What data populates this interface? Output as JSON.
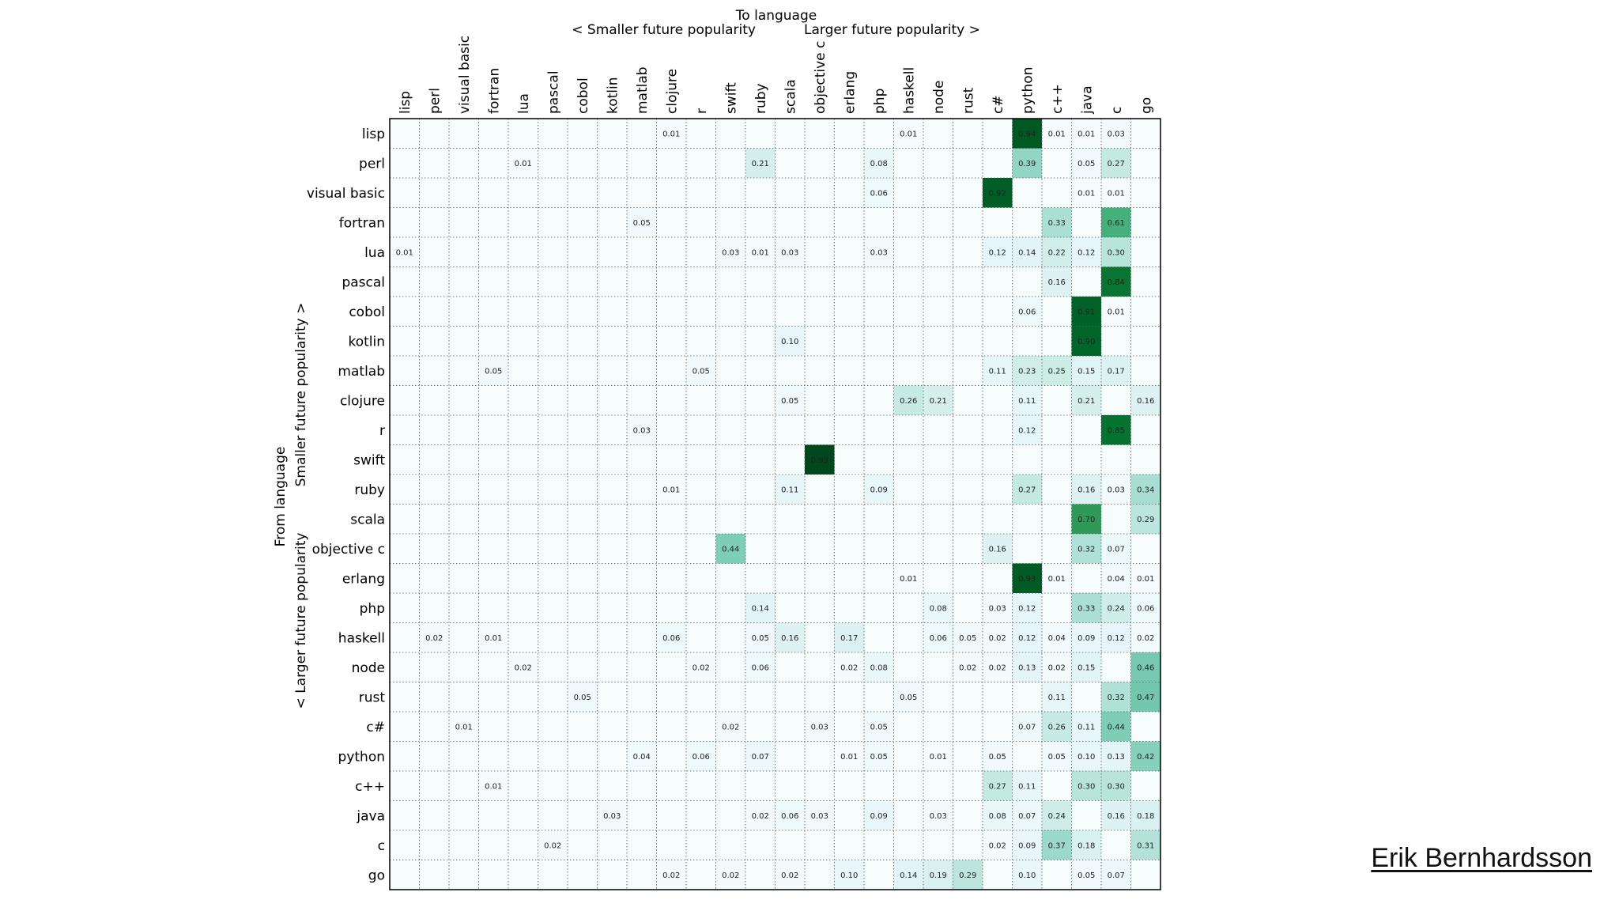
{
  "credit": "Erik Bernhardsson",
  "chart_data": {
    "type": "heatmap",
    "title": "",
    "xlabel": "To language",
    "xlabel_left": "< Smaller future popularity",
    "xlabel_right": "Larger future popularity >",
    "ylabel": "From language",
    "ylabel_top": "Smaller future popularity >",
    "ylabel_bottom": "< Larger future popularity",
    "colormap": "BuGn",
    "grid": true,
    "color_range": [
      0,
      1
    ],
    "languages": [
      "lisp",
      "perl",
      "visual basic",
      "fortran",
      "lua",
      "pascal",
      "cobol",
      "kotlin",
      "matlab",
      "clojure",
      "r",
      "swift",
      "ruby",
      "scala",
      "objective c",
      "erlang",
      "php",
      "haskell",
      "node",
      "rust",
      "c#",
      "python",
      "c++",
      "java",
      "c",
      "go"
    ],
    "cells": [
      {
        "from": "lisp",
        "to": "clojure",
        "value": "0.01"
      },
      {
        "from": "lisp",
        "to": "haskell",
        "value": "0.01"
      },
      {
        "from": "lisp",
        "to": "python",
        "value": "0.94"
      },
      {
        "from": "lisp",
        "to": "c++",
        "value": "0.01"
      },
      {
        "from": "lisp",
        "to": "java",
        "value": "0.01"
      },
      {
        "from": "lisp",
        "to": "c",
        "value": "0.03"
      },
      {
        "from": "perl",
        "to": "lua",
        "value": "0.01"
      },
      {
        "from": "perl",
        "to": "ruby",
        "value": "0.21"
      },
      {
        "from": "perl",
        "to": "php",
        "value": "0.08"
      },
      {
        "from": "perl",
        "to": "python",
        "value": "0.39"
      },
      {
        "from": "perl",
        "to": "java",
        "value": "0.05"
      },
      {
        "from": "perl",
        "to": "c",
        "value": "0.27"
      },
      {
        "from": "visual basic",
        "to": "php",
        "value": "0.06"
      },
      {
        "from": "visual basic",
        "to": "c#",
        "value": "0.92"
      },
      {
        "from": "visual basic",
        "to": "java",
        "value": "0.01"
      },
      {
        "from": "visual basic",
        "to": "c",
        "value": "0.01"
      },
      {
        "from": "fortran",
        "to": "matlab",
        "value": "0.05"
      },
      {
        "from": "fortran",
        "to": "c++",
        "value": "0.33"
      },
      {
        "from": "fortran",
        "to": "c",
        "value": "0.61"
      },
      {
        "from": "lua",
        "to": "lisp",
        "value": "0.01"
      },
      {
        "from": "lua",
        "to": "swift",
        "value": "0.03"
      },
      {
        "from": "lua",
        "to": "ruby",
        "value": "0.01"
      },
      {
        "from": "lua",
        "to": "scala",
        "value": "0.03"
      },
      {
        "from": "lua",
        "to": "php",
        "value": "0.03"
      },
      {
        "from": "lua",
        "to": "c#",
        "value": "0.12"
      },
      {
        "from": "lua",
        "to": "python",
        "value": "0.14"
      },
      {
        "from": "lua",
        "to": "c++",
        "value": "0.22"
      },
      {
        "from": "lua",
        "to": "java",
        "value": "0.12"
      },
      {
        "from": "lua",
        "to": "c",
        "value": "0.30"
      },
      {
        "from": "pascal",
        "to": "c++",
        "value": "0.16"
      },
      {
        "from": "pascal",
        "to": "c",
        "value": "0.84"
      },
      {
        "from": "cobol",
        "to": "python",
        "value": "0.06"
      },
      {
        "from": "cobol",
        "to": "java",
        "value": "0.91"
      },
      {
        "from": "cobol",
        "to": "c",
        "value": "0.01"
      },
      {
        "from": "kotlin",
        "to": "scala",
        "value": "0.10"
      },
      {
        "from": "kotlin",
        "to": "java",
        "value": "0.90"
      },
      {
        "from": "matlab",
        "to": "fortran",
        "value": "0.05"
      },
      {
        "from": "matlab",
        "to": "r",
        "value": "0.05"
      },
      {
        "from": "matlab",
        "to": "c#",
        "value": "0.11"
      },
      {
        "from": "matlab",
        "to": "python",
        "value": "0.23"
      },
      {
        "from": "matlab",
        "to": "c++",
        "value": "0.25"
      },
      {
        "from": "matlab",
        "to": "java",
        "value": "0.15"
      },
      {
        "from": "matlab",
        "to": "c",
        "value": "0.17"
      },
      {
        "from": "clojure",
        "to": "scala",
        "value": "0.05"
      },
      {
        "from": "clojure",
        "to": "haskell",
        "value": "0.26"
      },
      {
        "from": "clojure",
        "to": "node",
        "value": "0.21"
      },
      {
        "from": "clojure",
        "to": "python",
        "value": "0.11"
      },
      {
        "from": "clojure",
        "to": "java",
        "value": "0.21"
      },
      {
        "from": "clojure",
        "to": "go",
        "value": "0.16"
      },
      {
        "from": "r",
        "to": "matlab",
        "value": "0.03"
      },
      {
        "from": "r",
        "to": "python",
        "value": "0.12"
      },
      {
        "from": "r",
        "to": "c",
        "value": "0.85"
      },
      {
        "from": "swift",
        "to": "objective c",
        "value": "0.99"
      },
      {
        "from": "ruby",
        "to": "clojure",
        "value": "0.01"
      },
      {
        "from": "ruby",
        "to": "scala",
        "value": "0.11"
      },
      {
        "from": "ruby",
        "to": "php",
        "value": "0.09"
      },
      {
        "from": "ruby",
        "to": "python",
        "value": "0.27"
      },
      {
        "from": "ruby",
        "to": "java",
        "value": "0.16"
      },
      {
        "from": "ruby",
        "to": "c",
        "value": "0.03"
      },
      {
        "from": "ruby",
        "to": "go",
        "value": "0.34"
      },
      {
        "from": "scala",
        "to": "java",
        "value": "0.70"
      },
      {
        "from": "scala",
        "to": "go",
        "value": "0.29"
      },
      {
        "from": "objective c",
        "to": "swift",
        "value": "0.44"
      },
      {
        "from": "objective c",
        "to": "c#",
        "value": "0.16"
      },
      {
        "from": "objective c",
        "to": "java",
        "value": "0.32"
      },
      {
        "from": "objective c",
        "to": "c",
        "value": "0.07"
      },
      {
        "from": "erlang",
        "to": "haskell",
        "value": "0.01"
      },
      {
        "from": "erlang",
        "to": "python",
        "value": "0.93"
      },
      {
        "from": "erlang",
        "to": "c++",
        "value": "0.01"
      },
      {
        "from": "erlang",
        "to": "c",
        "value": "0.04"
      },
      {
        "from": "erlang",
        "to": "go",
        "value": "0.01"
      },
      {
        "from": "php",
        "to": "ruby",
        "value": "0.14"
      },
      {
        "from": "php",
        "to": "node",
        "value": "0.08"
      },
      {
        "from": "php",
        "to": "c#",
        "value": "0.03"
      },
      {
        "from": "php",
        "to": "python",
        "value": "0.12"
      },
      {
        "from": "php",
        "to": "java",
        "value": "0.33"
      },
      {
        "from": "php",
        "to": "c",
        "value": "0.24"
      },
      {
        "from": "php",
        "to": "go",
        "value": "0.06"
      },
      {
        "from": "haskell",
        "to": "perl",
        "value": "0.02"
      },
      {
        "from": "haskell",
        "to": "fortran",
        "value": "0.01"
      },
      {
        "from": "haskell",
        "to": "clojure",
        "value": "0.06"
      },
      {
        "from": "haskell",
        "to": "ruby",
        "value": "0.05"
      },
      {
        "from": "haskell",
        "to": "scala",
        "value": "0.16"
      },
      {
        "from": "haskell",
        "to": "erlang",
        "value": "0.17"
      },
      {
        "from": "haskell",
        "to": "node",
        "value": "0.06"
      },
      {
        "from": "haskell",
        "to": "rust",
        "value": "0.05"
      },
      {
        "from": "haskell",
        "to": "c#",
        "value": "0.02"
      },
      {
        "from": "haskell",
        "to": "python",
        "value": "0.12"
      },
      {
        "from": "haskell",
        "to": "c++",
        "value": "0.04"
      },
      {
        "from": "haskell",
        "to": "java",
        "value": "0.09"
      },
      {
        "from": "haskell",
        "to": "c",
        "value": "0.12"
      },
      {
        "from": "haskell",
        "to": "go",
        "value": "0.02"
      },
      {
        "from": "node",
        "to": "lua",
        "value": "0.02"
      },
      {
        "from": "node",
        "to": "r",
        "value": "0.02"
      },
      {
        "from": "node",
        "to": "ruby",
        "value": "0.06"
      },
      {
        "from": "node",
        "to": "erlang",
        "value": "0.02"
      },
      {
        "from": "node",
        "to": "php",
        "value": "0.08"
      },
      {
        "from": "node",
        "to": "rust",
        "value": "0.02"
      },
      {
        "from": "node",
        "to": "c#",
        "value": "0.02"
      },
      {
        "from": "node",
        "to": "python",
        "value": "0.13"
      },
      {
        "from": "node",
        "to": "c++",
        "value": "0.02"
      },
      {
        "from": "node",
        "to": "java",
        "value": "0.15"
      },
      {
        "from": "node",
        "to": "go",
        "value": "0.46"
      },
      {
        "from": "rust",
        "to": "cobol",
        "value": "0.05"
      },
      {
        "from": "rust",
        "to": "haskell",
        "value": "0.05"
      },
      {
        "from": "rust",
        "to": "c++",
        "value": "0.11"
      },
      {
        "from": "rust",
        "to": "c",
        "value": "0.32"
      },
      {
        "from": "rust",
        "to": "go",
        "value": "0.47"
      },
      {
        "from": "c#",
        "to": "visual basic",
        "value": "0.01"
      },
      {
        "from": "c#",
        "to": "swift",
        "value": "0.02"
      },
      {
        "from": "c#",
        "to": "objective c",
        "value": "0.03"
      },
      {
        "from": "c#",
        "to": "php",
        "value": "0.05"
      },
      {
        "from": "c#",
        "to": "python",
        "value": "0.07"
      },
      {
        "from": "c#",
        "to": "c++",
        "value": "0.26"
      },
      {
        "from": "c#",
        "to": "java",
        "value": "0.11"
      },
      {
        "from": "c#",
        "to": "c",
        "value": "0.44"
      },
      {
        "from": "python",
        "to": "matlab",
        "value": "0.04"
      },
      {
        "from": "python",
        "to": "r",
        "value": "0.06"
      },
      {
        "from": "python",
        "to": "ruby",
        "value": "0.07"
      },
      {
        "from": "python",
        "to": "erlang",
        "value": "0.01"
      },
      {
        "from": "python",
        "to": "php",
        "value": "0.05"
      },
      {
        "from": "python",
        "to": "node",
        "value": "0.01"
      },
      {
        "from": "python",
        "to": "c#",
        "value": "0.05"
      },
      {
        "from": "python",
        "to": "c++",
        "value": "0.05"
      },
      {
        "from": "python",
        "to": "java",
        "value": "0.10"
      },
      {
        "from": "python",
        "to": "c",
        "value": "0.13"
      },
      {
        "from": "python",
        "to": "go",
        "value": "0.42"
      },
      {
        "from": "c++",
        "to": "fortran",
        "value": "0.01"
      },
      {
        "from": "c++",
        "to": "c#",
        "value": "0.27"
      },
      {
        "from": "c++",
        "to": "python",
        "value": "0.11"
      },
      {
        "from": "c++",
        "to": "java",
        "value": "0.30"
      },
      {
        "from": "c++",
        "to": "c",
        "value": "0.30"
      },
      {
        "from": "java",
        "to": "kotlin",
        "value": "0.03"
      },
      {
        "from": "java",
        "to": "ruby",
        "value": "0.02"
      },
      {
        "from": "java",
        "to": "scala",
        "value": "0.06"
      },
      {
        "from": "java",
        "to": "objective c",
        "value": "0.03"
      },
      {
        "from": "java",
        "to": "php",
        "value": "0.09"
      },
      {
        "from": "java",
        "to": "node",
        "value": "0.03"
      },
      {
        "from": "java",
        "to": "c#",
        "value": "0.08"
      },
      {
        "from": "java",
        "to": "python",
        "value": "0.07"
      },
      {
        "from": "java",
        "to": "c++",
        "value": "0.24"
      },
      {
        "from": "java",
        "to": "c",
        "value": "0.16"
      },
      {
        "from": "java",
        "to": "go",
        "value": "0.18"
      },
      {
        "from": "c",
        "to": "pascal",
        "value": "0.02"
      },
      {
        "from": "c",
        "to": "c#",
        "value": "0.02"
      },
      {
        "from": "c",
        "to": "python",
        "value": "0.09"
      },
      {
        "from": "c",
        "to": "c++",
        "value": "0.37"
      },
      {
        "from": "c",
        "to": "java",
        "value": "0.18"
      },
      {
        "from": "c",
        "to": "go",
        "value": "0.31"
      },
      {
        "from": "go",
        "to": "clojure",
        "value": "0.02"
      },
      {
        "from": "go",
        "to": "swift",
        "value": "0.02"
      },
      {
        "from": "go",
        "to": "scala",
        "value": "0.02"
      },
      {
        "from": "go",
        "to": "erlang",
        "value": "0.10"
      },
      {
        "from": "go",
        "to": "haskell",
        "value": "0.14"
      },
      {
        "from": "go",
        "to": "node",
        "value": "0.19"
      },
      {
        "from": "go",
        "to": "rust",
        "value": "0.29"
      },
      {
        "from": "go",
        "to": "python",
        "value": "0.10"
      },
      {
        "from": "go",
        "to": "java",
        "value": "0.05"
      },
      {
        "from": "go",
        "to": "c",
        "value": "0.07"
      }
    ]
  }
}
